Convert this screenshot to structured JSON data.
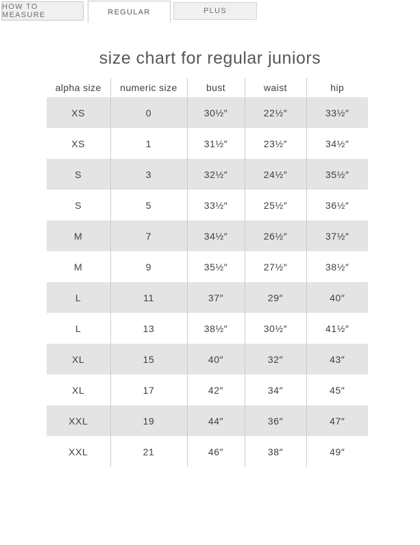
{
  "tabs": [
    {
      "label": "HOW TO MEASURE",
      "active": false
    },
    {
      "label": "REGULAR",
      "active": true
    },
    {
      "label": "PLUS",
      "active": false
    }
  ],
  "title": "size chart for regular juniors",
  "table": {
    "headers": [
      "alpha size",
      "numeric size",
      "bust",
      "waist",
      "hip"
    ],
    "column_keys": [
      "alpha-size",
      "numeric-size",
      "bust",
      "waist",
      "hip"
    ],
    "rows": [
      [
        "XS",
        "0",
        "30½″",
        "22½″",
        "33½″"
      ],
      [
        "XS",
        "1",
        "31½″",
        "23½″",
        "34½″"
      ],
      [
        "S",
        "3",
        "32½″",
        "24½″",
        "35½″"
      ],
      [
        "S",
        "5",
        "33½″",
        "25½″",
        "36½″"
      ],
      [
        "M",
        "7",
        "34½″",
        "26½″",
        "37½″"
      ],
      [
        "M",
        "9",
        "35½″",
        "27½″",
        "38½″"
      ],
      [
        "L",
        "11",
        "37″",
        "29″",
        "40″"
      ],
      [
        "L",
        "13",
        "38½″",
        "30½″",
        "41½″"
      ],
      [
        "XL",
        "15",
        "40″",
        "32″",
        "43″"
      ],
      [
        "XL",
        "17",
        "42″",
        "34″",
        "45″"
      ],
      [
        "XXL",
        "19",
        "44″",
        "36″",
        "47″"
      ],
      [
        "XXL",
        "21",
        "46″",
        "38″",
        "49″"
      ]
    ]
  },
  "colors": {
    "row_shade": "#e4e4e4",
    "column_divider": "#cbcbcb",
    "inactive_tab_bg": "#f0f0f0",
    "tab_border": "#c6c6c6",
    "text": "#3e3e40",
    "title_text": "#57575a"
  }
}
